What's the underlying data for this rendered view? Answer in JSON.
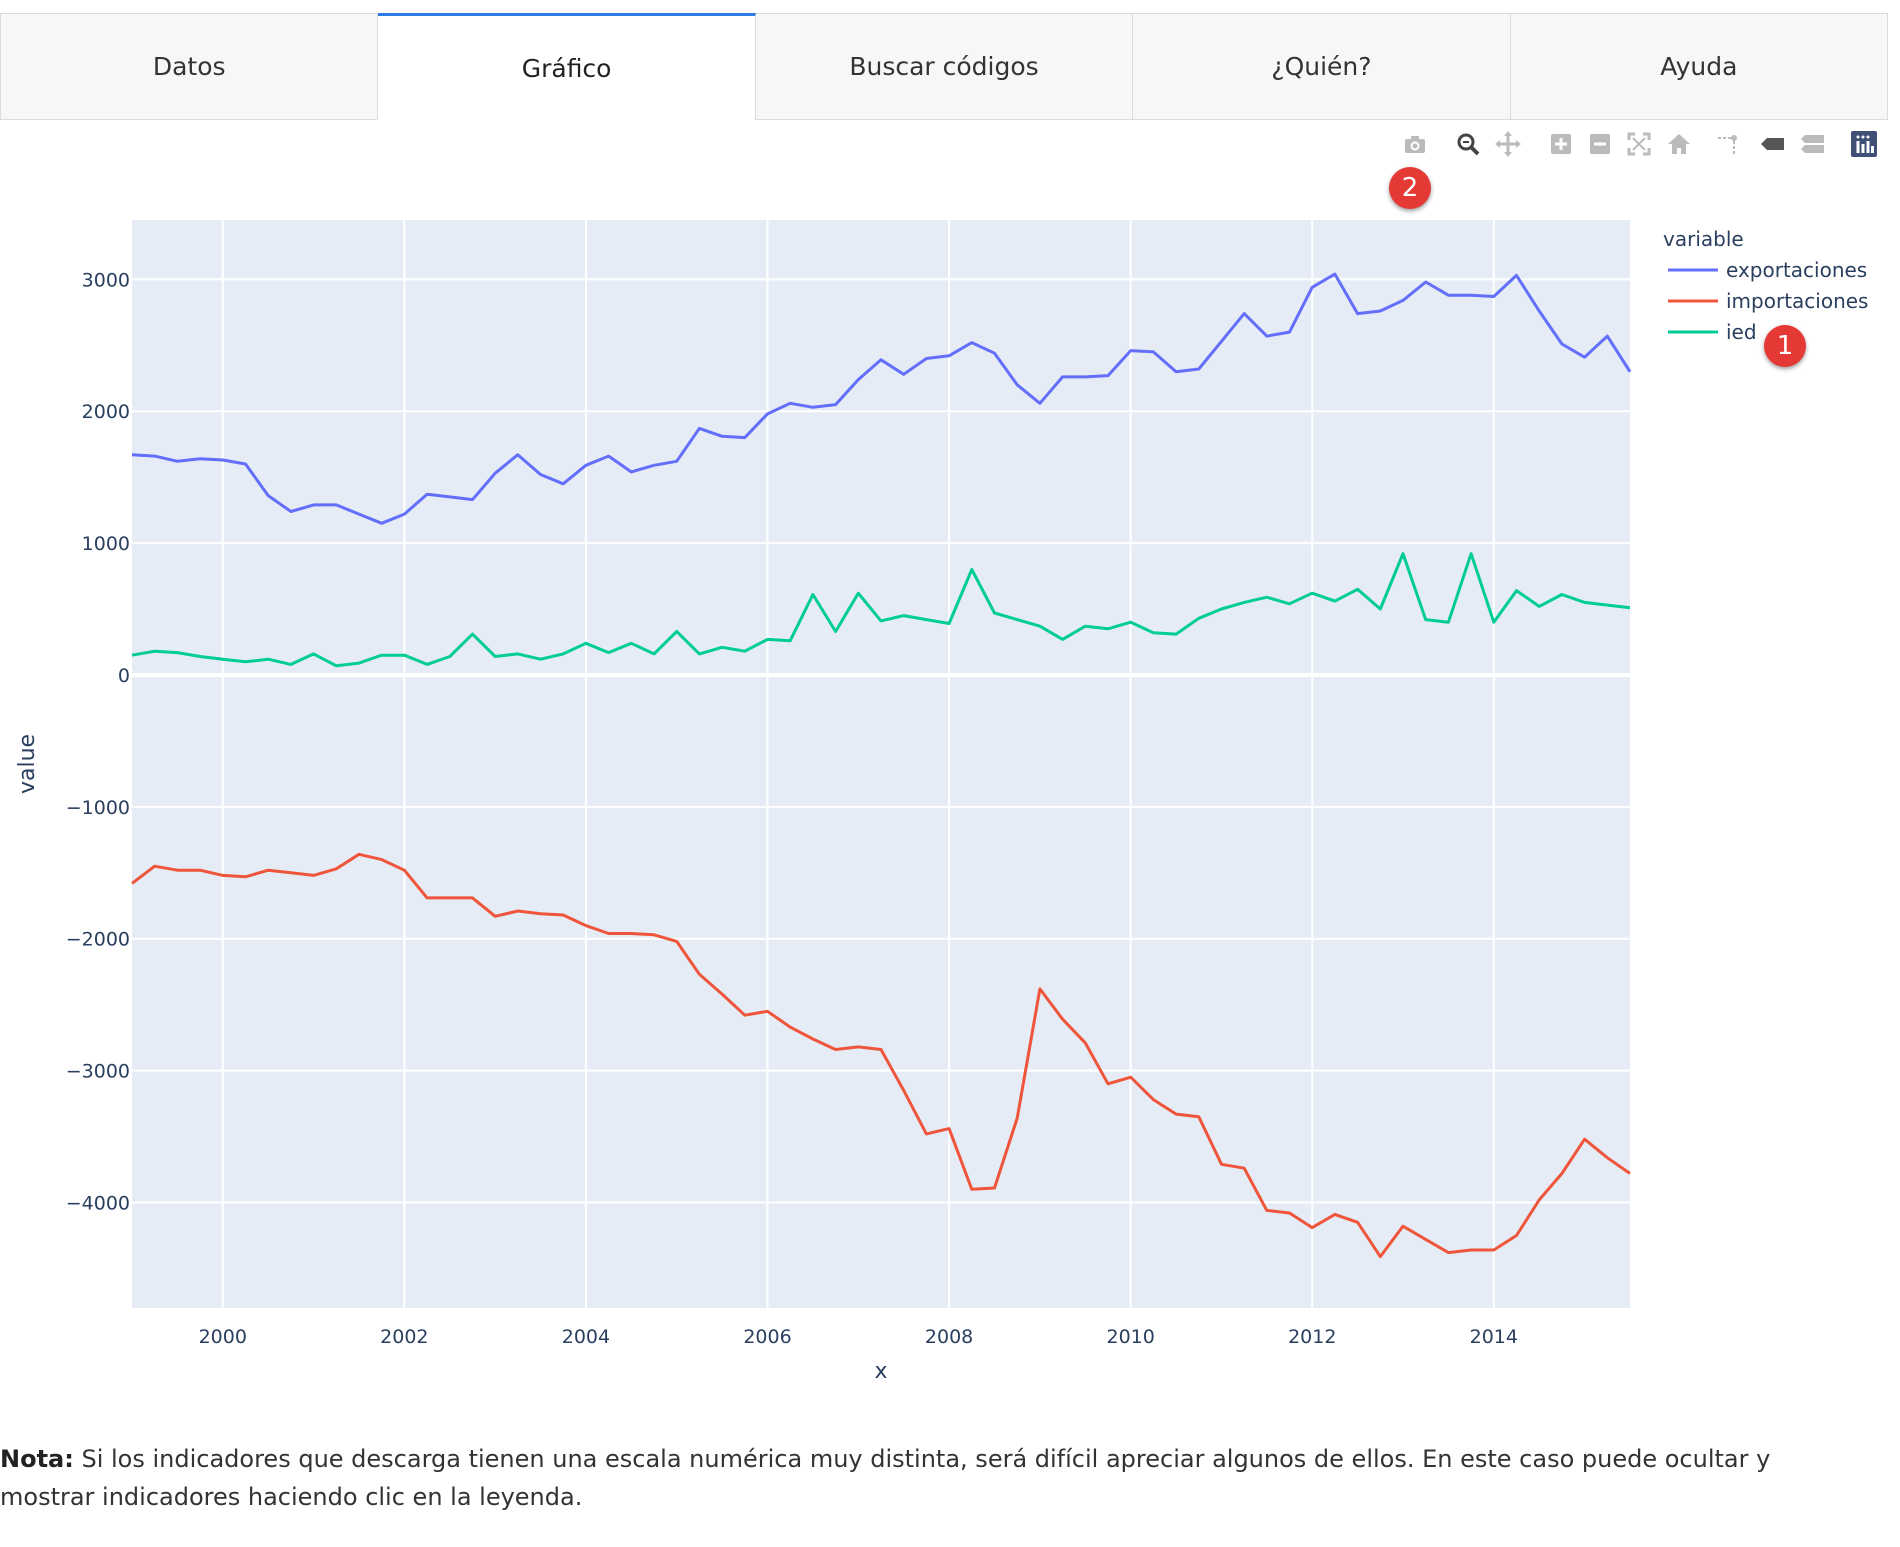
{
  "tabs": [
    {
      "label": "Datos",
      "active": false
    },
    {
      "label": "Gráfico",
      "active": true
    },
    {
      "label": "Buscar códigos",
      "active": false
    },
    {
      "label": "¿Quién?",
      "active": false
    },
    {
      "label": "Ayuda",
      "active": false
    }
  ],
  "modebar": {
    "buttons": [
      "camera-icon",
      "zoom-icon",
      "pan-icon",
      "zoom-in-icon",
      "zoom-out-icon",
      "autoscale-icon",
      "reset-axes-icon",
      "spike-lines-icon",
      "hover-closest-icon",
      "hover-compare-icon",
      "plotly-logo-icon"
    ]
  },
  "badges": {
    "one": "1",
    "two": "2"
  },
  "colors": {
    "exportaciones": "#636efa",
    "importaciones": "#ef553b",
    "ied": "#00cc96",
    "plot_bg": "#e5ecf6",
    "tab_active": "#2c7be5",
    "badge": "#e53935"
  },
  "chart_data": {
    "type": "line",
    "xlabel": "x",
    "ylabel": "value",
    "legend_title": "variable",
    "legend_position": "top-right",
    "grid": true,
    "xlim": [
      1999.0,
      2015.5
    ],
    "ylim": [
      -4800,
      3450
    ],
    "x_ticks": [
      2000,
      2002,
      2004,
      2006,
      2008,
      2010,
      2012,
      2014
    ],
    "y_ticks": [
      3000,
      2000,
      1000,
      0,
      -1000,
      -2000,
      -3000,
      -4000
    ],
    "y_tick_labels": [
      "3000",
      "2000",
      "1000",
      "0",
      "−1000",
      "−2000",
      "−3000",
      "−4000"
    ],
    "x": [
      1999.0,
      1999.25,
      1999.5,
      1999.75,
      2000.0,
      2000.25,
      2000.5,
      2000.75,
      2001.0,
      2001.25,
      2001.5,
      2001.75,
      2002.0,
      2002.25,
      2002.5,
      2002.75,
      2003.0,
      2003.25,
      2003.5,
      2003.75,
      2004.0,
      2004.25,
      2004.5,
      2004.75,
      2005.0,
      2005.25,
      2005.5,
      2005.75,
      2006.0,
      2006.25,
      2006.5,
      2006.75,
      2007.0,
      2007.25,
      2007.5,
      2007.75,
      2008.0,
      2008.25,
      2008.5,
      2008.75,
      2009.0,
      2009.25,
      2009.5,
      2009.75,
      2010.0,
      2010.25,
      2010.5,
      2010.75,
      2011.0,
      2011.25,
      2011.5,
      2011.75,
      2012.0,
      2012.25,
      2012.5,
      2012.75,
      2013.0,
      2013.25,
      2013.5,
      2013.75,
      2014.0,
      2014.25,
      2014.5,
      2014.75,
      2015.0,
      2015.25,
      2015.5
    ],
    "series": [
      {
        "name": "exportaciones",
        "values": [
          1670,
          1660,
          1620,
          1640,
          1630,
          1600,
          1360,
          1240,
          1290,
          1290,
          1220,
          1150,
          1220,
          1370,
          1350,
          1330,
          1530,
          1670,
          1520,
          1450,
          1590,
          1660,
          1540,
          1590,
          1620,
          1870,
          1810,
          1800,
          1980,
          2060,
          2030,
          2050,
          2240,
          2390,
          2280,
          2400,
          2420,
          2520,
          2440,
          2200,
          2060,
          2260,
          2260,
          2270,
          2460,
          2450,
          2300,
          2320,
          2530,
          2740,
          2570,
          2600,
          2940,
          3040,
          2740,
          2760,
          2840,
          2980,
          2880,
          2880,
          2870,
          3030,
          2760,
          2510,
          2410,
          2570,
          2300
        ]
      },
      {
        "name": "importaciones",
        "values": [
          -1580,
          -1450,
          -1480,
          -1480,
          -1520,
          -1530,
          -1480,
          -1500,
          -1520,
          -1470,
          -1360,
          -1400,
          -1480,
          -1690,
          -1690,
          -1690,
          -1830,
          -1790,
          -1810,
          -1820,
          -1900,
          -1960,
          -1960,
          -1970,
          -2020,
          -2270,
          -2420,
          -2580,
          -2550,
          -2670,
          -2760,
          -2840,
          -2820,
          -2840,
          -3150,
          -3480,
          -3440,
          -3900,
          -3890,
          -3360,
          -2380,
          -2610,
          -2790,
          -3100,
          -3050,
          -3220,
          -3330,
          -3350,
          -3710,
          -3740,
          -4060,
          -4080,
          -4190,
          -4090,
          -4150,
          -4410,
          -4180,
          -4280,
          -4380,
          -4360,
          -4360,
          -4250,
          -3980,
          -3780,
          -3520,
          -3660,
          -3780
        ]
      },
      {
        "name": "ied",
        "values": [
          150,
          180,
          170,
          140,
          120,
          100,
          120,
          80,
          160,
          70,
          90,
          150,
          150,
          80,
          140,
          310,
          140,
          160,
          120,
          160,
          240,
          170,
          240,
          160,
          330,
          160,
          210,
          180,
          270,
          260,
          610,
          330,
          620,
          410,
          450,
          420,
          390,
          800,
          470,
          420,
          370,
          270,
          370,
          350,
          400,
          320,
          310,
          430,
          500,
          550,
          590,
          540,
          620,
          560,
          650,
          500,
          920,
          420,
          400,
          920,
          400,
          640,
          520,
          610,
          550,
          530,
          510
        ]
      }
    ]
  },
  "note": {
    "label": "Nota:",
    "text": " Si los indicadores que descarga tienen una escala numérica muy distinta, será difícil apreciar algunos de ellos. En este caso puede ocultar y mostrar indicadores haciendo clic en la leyenda."
  }
}
